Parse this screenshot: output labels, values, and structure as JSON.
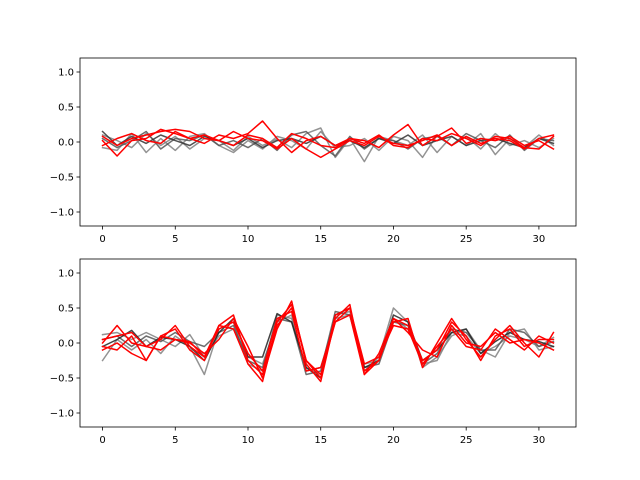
{
  "chart_data": [
    {
      "type": "line",
      "xlim": [
        -1.55,
        32.55
      ],
      "ylim": [
        -1.2,
        1.2
      ],
      "xticks": [
        0,
        5,
        10,
        15,
        20,
        25,
        30
      ],
      "yticks": [
        -1.0,
        -0.5,
        0.0,
        0.5,
        1.0
      ],
      "xtick_labels": [
        "0",
        "5",
        "10",
        "15",
        "20",
        "25",
        "30"
      ],
      "ytick_labels": [
        "−1.0",
        "−0.5",
        "0.0",
        "0.5",
        "1.0"
      ],
      "grid": false,
      "series": [
        {
          "color": "#808080",
          "values": [
            0.1,
            0.02,
            -0.08,
            0.12,
            -0.05,
            0.08,
            -0.1,
            0.05,
            0.02,
            -0.12,
            0.08,
            -0.05,
            0.04,
            -0.08,
            0.12,
            0.2,
            -0.22,
            0.05,
            -0.28,
            0.08,
            0.02,
            -0.05,
            0.1,
            -0.15,
            0.08,
            -0.05,
            0.12,
            -0.18,
            0.05,
            -0.08,
            0.1,
            -0.05
          ]
        },
        {
          "color": "#808080",
          "values": [
            -0.08,
            -0.12,
            0.12,
            -0.15,
            0.05,
            -0.12,
            0.08,
            0.12,
            -0.05,
            -0.15,
            0.02,
            -0.1,
            0.08,
            0.02,
            -0.1,
            0.15,
            -0.08,
            -0.05,
            0.05,
            -0.12,
            0.08,
            0.02,
            -0.22,
            0.1,
            -0.05,
            0.08,
            -0.1,
            0.12,
            -0.05,
            0.02,
            -0.08,
            0.05
          ]
        },
        {
          "color": "#555555",
          "values": [
            0.05,
            -0.08,
            0.02,
            0.15,
            -0.1,
            0.05,
            0.02,
            0.1,
            -0.05,
            0.02,
            -0.08,
            0.05,
            -0.12,
            0.1,
            0.15,
            -0.05,
            -0.2,
            0.08,
            -0.1,
            0.05,
            0.02,
            -0.1,
            0.05,
            0.08,
            -0.05,
            0.12,
            0.02,
            -0.08,
            0.1,
            -0.12,
            0.05,
            0.02
          ]
        },
        {
          "color": "#333333",
          "values": [
            0.15,
            -0.05,
            0.08,
            -0.02,
            0.1,
            0.02,
            -0.05,
            0.08,
            0.02,
            -0.05,
            0.05,
            -0.08,
            0.02,
            0.05,
            -0.02,
            0.08,
            -0.05,
            0.02,
            -0.08,
            0.05,
            -0.02,
            0.1,
            -0.05,
            0.02,
            0.08,
            -0.05,
            0.02,
            0.05,
            -0.02,
            -0.08,
            0.05,
            -0.02
          ]
        },
        {
          "color": "#ff0000",
          "values": [
            0.02,
            -0.2,
            0.02,
            0.05,
            0.18,
            0.12,
            0.05,
            -0.02,
            0.1,
            0.05,
            0.12,
            0.3,
            0.05,
            -0.15,
            0.02,
            0.08,
            -0.05,
            0.05,
            0.02,
            -0.08,
            0.1,
            0.25,
            -0.05,
            0.08,
            0.2,
            -0.02,
            0.05,
            0.02,
            0.08,
            -0.05,
            0.02,
            -0.1
          ]
        },
        {
          "color": "#ff0000",
          "values": [
            -0.05,
            0.05,
            0.12,
            0.02,
            -0.02,
            0.15,
            0.05,
            0.1,
            0.02,
            0.15,
            0.05,
            0.02,
            -0.1,
            0.05,
            -0.1,
            -0.22,
            -0.1,
            0.02,
            -0.05,
            0.08,
            -0.02,
            -0.05,
            0.02,
            0.1,
            -0.05,
            0.08,
            -0.02,
            0.05,
            0.02,
            -0.1,
            0.05,
            0.1
          ]
        },
        {
          "color": "#ff0000",
          "values": [
            0.08,
            -0.05,
            0.05,
            0.1,
            0.15,
            0.18,
            0.15,
            0.05,
            0.02,
            -0.05,
            0.1,
            0.05,
            -0.08,
            0.12,
            0.05,
            -0.05,
            -0.08,
            0.05,
            -0.02,
            0.1,
            -0.05,
            -0.08,
            0.05,
            0.02,
            0.12,
            0.05,
            -0.05,
            0.08,
            0.05,
            -0.08,
            -0.1,
            0.08
          ]
        }
      ]
    },
    {
      "type": "line",
      "xlim": [
        -1.55,
        32.55
      ],
      "ylim": [
        -1.2,
        1.2
      ],
      "xticks": [
        0,
        5,
        10,
        15,
        20,
        25,
        30
      ],
      "yticks": [
        -1.0,
        -0.5,
        0.0,
        0.5,
        1.0
      ],
      "xtick_labels": [
        "0",
        "5",
        "10",
        "15",
        "20",
        "25",
        "30"
      ],
      "ytick_labels": [
        "−1.0",
        "−0.5",
        "0.0",
        "0.5",
        "1.0"
      ],
      "grid": false,
      "series": [
        {
          "color": "#808080",
          "values": [
            -0.25,
            0.05,
            -0.1,
            0.05,
            -0.15,
            0.1,
            -0.05,
            -0.45,
            0.2,
            0.3,
            -0.3,
            -0.4,
            0.4,
            0.35,
            -0.35,
            -0.45,
            0.4,
            0.45,
            -0.4,
            -0.2,
            0.5,
            0.3,
            -0.35,
            -0.2,
            0.1,
            0.2,
            -0.1,
            -0.2,
            0.15,
            0.2,
            -0.1,
            -0.05
          ]
        },
        {
          "color": "#808080",
          "values": [
            0.12,
            0.15,
            0.05,
            0.15,
            0.05,
            -0.05,
            0.12,
            -0.2,
            0.1,
            0.2,
            -0.2,
            -0.3,
            0.3,
            0.4,
            -0.4,
            -0.35,
            0.35,
            0.4,
            -0.3,
            -0.25,
            0.35,
            0.2,
            -0.3,
            -0.25,
            0.15,
            0.1,
            -0.15,
            -0.05,
            0.1,
            0.05,
            -0.05,
            0.08
          ]
        },
        {
          "color": "#555555",
          "values": [
            0.05,
            0.1,
            -0.05,
            0.1,
            0.02,
            0.15,
            0.02,
            -0.05,
            0.15,
            0.25,
            -0.25,
            -0.35,
            0.35,
            0.3,
            -0.45,
            -0.4,
            0.45,
            0.4,
            -0.35,
            -0.3,
            0.3,
            0.25,
            -0.3,
            -0.15,
            0.2,
            0.15,
            -0.1,
            -0.1,
            0.2,
            0.15,
            -0.05,
            0.02
          ]
        },
        {
          "color": "#222222",
          "values": [
            -0.05,
            0.05,
            0.18,
            -0.05,
            0.08,
            0.05,
            -0.05,
            -0.25,
            0.15,
            0.35,
            -0.2,
            -0.2,
            0.42,
            0.3,
            -0.35,
            -0.5,
            0.4,
            0.5,
            -0.35,
            -0.25,
            0.4,
            0.3,
            -0.25,
            -0.1,
            0.15,
            0.2,
            -0.15,
            0.02,
            0.15,
            0.05,
            0.02,
            -0.05
          ]
        },
        {
          "color": "#ff0000",
          "values": [
            0.0,
            0.25,
            0.0,
            -0.05,
            0.05,
            0.25,
            -0.05,
            -0.2,
            0.25,
            0.2,
            -0.3,
            -0.55,
            0.3,
            0.55,
            -0.25,
            -0.5,
            0.4,
            0.5,
            -0.4,
            -0.25,
            0.3,
            0.35,
            -0.35,
            0.0,
            0.35,
            0.05,
            -0.2,
            0.05,
            0.25,
            0.0,
            -0.2,
            0.15
          ]
        },
        {
          "color": "#ff0000",
          "values": [
            -0.1,
            0.0,
            -0.15,
            -0.25,
            0.1,
            0.05,
            0.0,
            -0.15,
            0.05,
            0.35,
            -0.05,
            -0.5,
            0.2,
            0.6,
            -0.3,
            -0.55,
            0.35,
            0.55,
            -0.45,
            -0.15,
            0.35,
            0.15,
            -0.1,
            -0.2,
            0.25,
            0.0,
            -0.05,
            0.15,
            0.0,
            0.05,
            0.0,
            -0.1
          ]
        },
        {
          "color": "#ff0000",
          "values": [
            0.05,
            0.1,
            0.15,
            -0.05,
            -0.1,
            0.05,
            0.02,
            -0.2,
            0.2,
            0.3,
            -0.15,
            -0.4,
            0.35,
            0.45,
            -0.4,
            -0.35,
            0.3,
            0.5,
            -0.3,
            -0.2,
            0.25,
            0.2,
            -0.3,
            -0.05,
            0.2,
            -0.05,
            -0.1,
            0.2,
            0.05,
            -0.1,
            0.1,
            0.0
          ]
        },
        {
          "color": "#ff0000",
          "values": [
            -0.05,
            -0.1,
            0.1,
            -0.25,
            0.1,
            0.2,
            -0.1,
            -0.25,
            0.25,
            0.4,
            -0.25,
            -0.45,
            0.25,
            0.5,
            -0.25,
            -0.45,
            0.3,
            0.4,
            -0.45,
            -0.25,
            0.35,
            0.25,
            -0.25,
            -0.1,
            0.3,
            0.1,
            -0.25,
            0.1,
            0.2,
            -0.05,
            0.05,
            0.05
          ]
        }
      ]
    }
  ]
}
